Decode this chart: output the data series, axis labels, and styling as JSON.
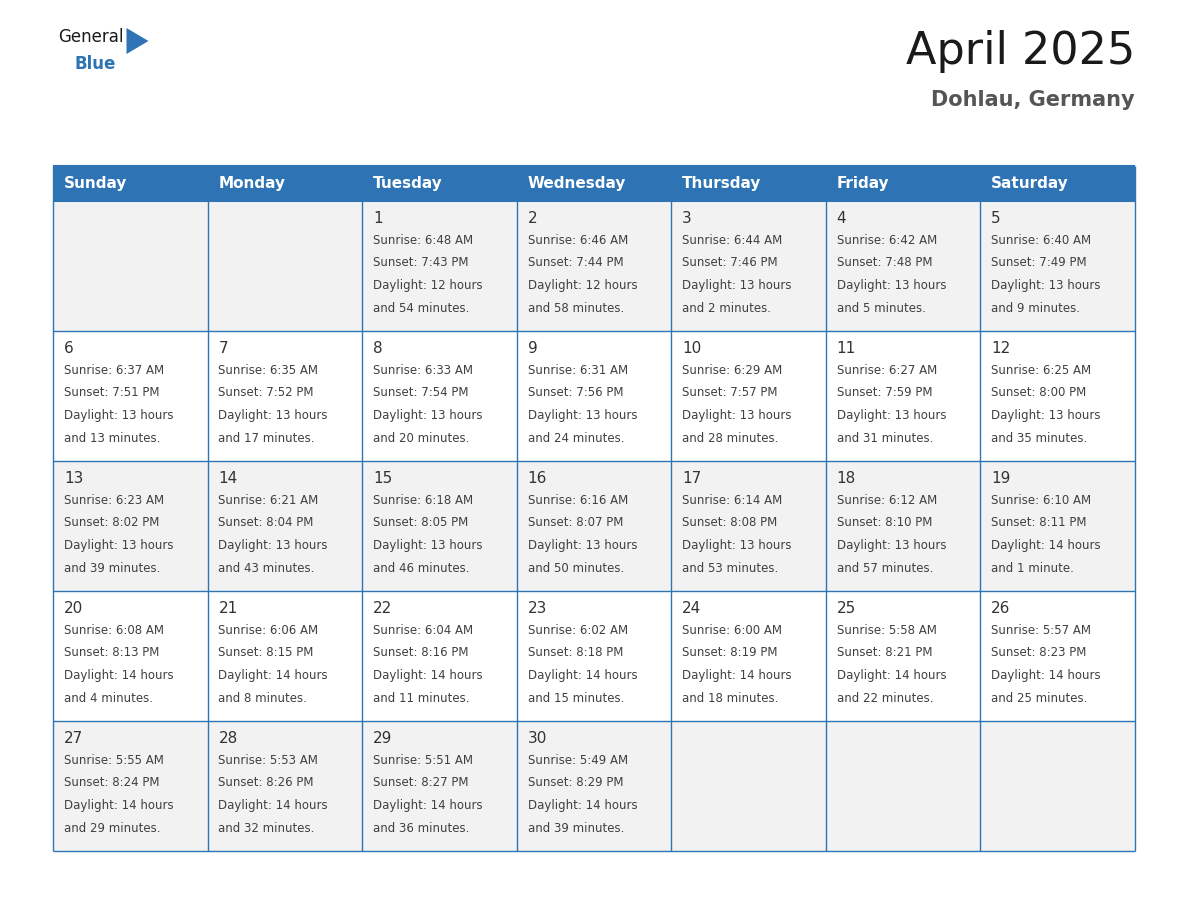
{
  "title": "April 2025",
  "subtitle": "Dohlau, Germany",
  "header_bg": "#2E74B5",
  "header_text_color": "#FFFFFF",
  "cell_bg_even": "#F2F2F2",
  "cell_bg_odd": "#FFFFFF",
  "border_color": "#2E74B5",
  "text_color": "#404040",
  "day_number_color": "#333333",
  "day_headers": [
    "Sunday",
    "Monday",
    "Tuesday",
    "Wednesday",
    "Thursday",
    "Friday",
    "Saturday"
  ],
  "weeks": [
    [
      {
        "day": "",
        "text": ""
      },
      {
        "day": "",
        "text": ""
      },
      {
        "day": "1",
        "text": "Sunrise: 6:48 AM\nSunset: 7:43 PM\nDaylight: 12 hours\nand 54 minutes."
      },
      {
        "day": "2",
        "text": "Sunrise: 6:46 AM\nSunset: 7:44 PM\nDaylight: 12 hours\nand 58 minutes."
      },
      {
        "day": "3",
        "text": "Sunrise: 6:44 AM\nSunset: 7:46 PM\nDaylight: 13 hours\nand 2 minutes."
      },
      {
        "day": "4",
        "text": "Sunrise: 6:42 AM\nSunset: 7:48 PM\nDaylight: 13 hours\nand 5 minutes."
      },
      {
        "day": "5",
        "text": "Sunrise: 6:40 AM\nSunset: 7:49 PM\nDaylight: 13 hours\nand 9 minutes."
      }
    ],
    [
      {
        "day": "6",
        "text": "Sunrise: 6:37 AM\nSunset: 7:51 PM\nDaylight: 13 hours\nand 13 minutes."
      },
      {
        "day": "7",
        "text": "Sunrise: 6:35 AM\nSunset: 7:52 PM\nDaylight: 13 hours\nand 17 minutes."
      },
      {
        "day": "8",
        "text": "Sunrise: 6:33 AM\nSunset: 7:54 PM\nDaylight: 13 hours\nand 20 minutes."
      },
      {
        "day": "9",
        "text": "Sunrise: 6:31 AM\nSunset: 7:56 PM\nDaylight: 13 hours\nand 24 minutes."
      },
      {
        "day": "10",
        "text": "Sunrise: 6:29 AM\nSunset: 7:57 PM\nDaylight: 13 hours\nand 28 minutes."
      },
      {
        "day": "11",
        "text": "Sunrise: 6:27 AM\nSunset: 7:59 PM\nDaylight: 13 hours\nand 31 minutes."
      },
      {
        "day": "12",
        "text": "Sunrise: 6:25 AM\nSunset: 8:00 PM\nDaylight: 13 hours\nand 35 minutes."
      }
    ],
    [
      {
        "day": "13",
        "text": "Sunrise: 6:23 AM\nSunset: 8:02 PM\nDaylight: 13 hours\nand 39 minutes."
      },
      {
        "day": "14",
        "text": "Sunrise: 6:21 AM\nSunset: 8:04 PM\nDaylight: 13 hours\nand 43 minutes."
      },
      {
        "day": "15",
        "text": "Sunrise: 6:18 AM\nSunset: 8:05 PM\nDaylight: 13 hours\nand 46 minutes."
      },
      {
        "day": "16",
        "text": "Sunrise: 6:16 AM\nSunset: 8:07 PM\nDaylight: 13 hours\nand 50 minutes."
      },
      {
        "day": "17",
        "text": "Sunrise: 6:14 AM\nSunset: 8:08 PM\nDaylight: 13 hours\nand 53 minutes."
      },
      {
        "day": "18",
        "text": "Sunrise: 6:12 AM\nSunset: 8:10 PM\nDaylight: 13 hours\nand 57 minutes."
      },
      {
        "day": "19",
        "text": "Sunrise: 6:10 AM\nSunset: 8:11 PM\nDaylight: 14 hours\nand 1 minute."
      }
    ],
    [
      {
        "day": "20",
        "text": "Sunrise: 6:08 AM\nSunset: 8:13 PM\nDaylight: 14 hours\nand 4 minutes."
      },
      {
        "day": "21",
        "text": "Sunrise: 6:06 AM\nSunset: 8:15 PM\nDaylight: 14 hours\nand 8 minutes."
      },
      {
        "day": "22",
        "text": "Sunrise: 6:04 AM\nSunset: 8:16 PM\nDaylight: 14 hours\nand 11 minutes."
      },
      {
        "day": "23",
        "text": "Sunrise: 6:02 AM\nSunset: 8:18 PM\nDaylight: 14 hours\nand 15 minutes."
      },
      {
        "day": "24",
        "text": "Sunrise: 6:00 AM\nSunset: 8:19 PM\nDaylight: 14 hours\nand 18 minutes."
      },
      {
        "day": "25",
        "text": "Sunrise: 5:58 AM\nSunset: 8:21 PM\nDaylight: 14 hours\nand 22 minutes."
      },
      {
        "day": "26",
        "text": "Sunrise: 5:57 AM\nSunset: 8:23 PM\nDaylight: 14 hours\nand 25 minutes."
      }
    ],
    [
      {
        "day": "27",
        "text": "Sunrise: 5:55 AM\nSunset: 8:24 PM\nDaylight: 14 hours\nand 29 minutes."
      },
      {
        "day": "28",
        "text": "Sunrise: 5:53 AM\nSunset: 8:26 PM\nDaylight: 14 hours\nand 32 minutes."
      },
      {
        "day": "29",
        "text": "Sunrise: 5:51 AM\nSunset: 8:27 PM\nDaylight: 14 hours\nand 36 minutes."
      },
      {
        "day": "30",
        "text": "Sunrise: 5:49 AM\nSunset: 8:29 PM\nDaylight: 14 hours\nand 39 minutes."
      },
      {
        "day": "",
        "text": ""
      },
      {
        "day": "",
        "text": ""
      },
      {
        "day": "",
        "text": ""
      }
    ]
  ],
  "logo_text_general": "General",
  "logo_text_blue": "Blue",
  "logo_color_general": "#1a1a1a",
  "logo_color_blue": "#2E74B5",
  "logo_triangle_color": "#2E74B5",
  "title_fontsize": 32,
  "subtitle_fontsize": 15,
  "header_fontsize": 11,
  "day_num_fontsize": 11,
  "cell_text_fontsize": 8.5
}
